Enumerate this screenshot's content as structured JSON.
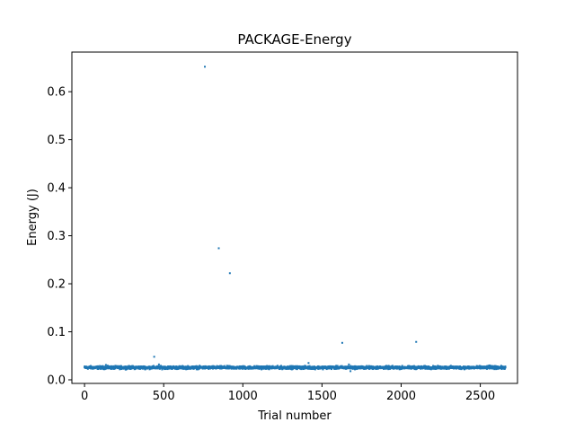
{
  "chart_data": {
    "type": "scatter",
    "title": "PACKAGE-Energy",
    "xlabel": "Trial number",
    "ylabel": "Energy (J)",
    "xlim": [
      -80,
      2735
    ],
    "ylim": [
      -0.0075,
      0.6825
    ],
    "xticks": [
      0,
      500,
      1000,
      1500,
      2000,
      2500
    ],
    "yticks": [
      0.0,
      0.1,
      0.2,
      0.3,
      0.4,
      0.5,
      0.6
    ],
    "ytick_labels": [
      "0.0",
      "0.1",
      "0.2",
      "0.3",
      "0.4",
      "0.5",
      "0.6"
    ],
    "grid": false,
    "marker_color": "#1f77b4",
    "n_trials": 2660,
    "baseline": {
      "mean": 0.0255,
      "spread": 0.003
    },
    "points": [
      {
        "x": 760,
        "y": 0.652
      },
      {
        "x": 848,
        "y": 0.274
      },
      {
        "x": 918,
        "y": 0.222
      },
      {
        "x": 2095,
        "y": 0.079
      },
      {
        "x": 1628,
        "y": 0.077
      },
      {
        "x": 440,
        "y": 0.048
      },
      {
        "x": 1415,
        "y": 0.035
      },
      {
        "x": 135,
        "y": 0.031
      },
      {
        "x": 470,
        "y": 0.032
      },
      {
        "x": 1670,
        "y": 0.032
      },
      {
        "x": 1680,
        "y": 0.018
      },
      {
        "x": 2560,
        "y": 0.03
      }
    ]
  }
}
